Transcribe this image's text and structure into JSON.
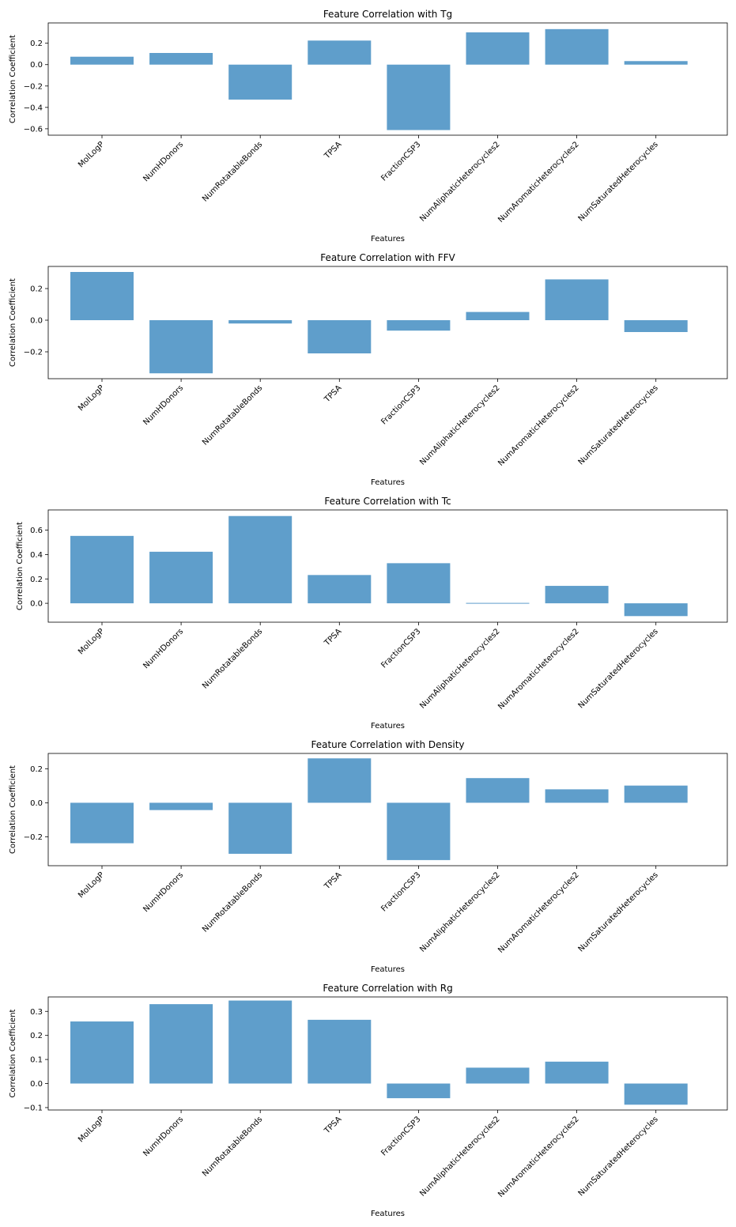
{
  "chart_data": [
    {
      "type": "bar",
      "title": "Feature Correlation with Tg",
      "xlabel": "Features",
      "ylabel": "Correlation Coefficient",
      "categories": [
        "MolLogP",
        "NumHDonors",
        "NumRotatableBonds",
        "TPSA",
        "FractionCSP3",
        "NumAliphaticHeterocycles2",
        "NumAromaticHeterocycles2",
        "NumSaturatedHeterocycles"
      ],
      "values": [
        0.074,
        0.109,
        -0.327,
        0.225,
        -0.612,
        0.302,
        0.332,
        0.033
      ],
      "ylim": [
        -0.66,
        0.39
      ],
      "yticks": [
        -0.6,
        -0.4,
        -0.2,
        0.0,
        0.2
      ],
      "ytick_labels": [
        "−0.6",
        "−0.4",
        "−0.2",
        "0.0",
        "0.2"
      ],
      "bar_color": "#5f9ecb",
      "grid": false
    },
    {
      "type": "bar",
      "title": "Feature Correlation with FFV",
      "xlabel": "Features",
      "ylabel": "Correlation Coefficient",
      "categories": [
        "MolLogP",
        "NumHDonors",
        "NumRotatableBonds",
        "TPSA",
        "FractionCSP3",
        "NumAliphaticHeterocycles2",
        "NumAromaticHeterocycles2",
        "NumSaturatedHeterocycles"
      ],
      "values": [
        0.305,
        -0.336,
        -0.021,
        -0.21,
        -0.066,
        0.052,
        0.258,
        -0.075
      ],
      "ylim": [
        -0.37,
        0.34
      ],
      "yticks": [
        -0.2,
        0.0,
        0.2
      ],
      "ytick_labels": [
        "−0.2",
        "0.0",
        "0.2"
      ],
      "bar_color": "#5f9ecb",
      "grid": false
    },
    {
      "type": "bar",
      "title": "Feature Correlation with Tc",
      "xlabel": "Features",
      "ylabel": "Correlation Coefficient",
      "categories": [
        "MolLogP",
        "NumHDonors",
        "NumRotatableBonds",
        "TPSA",
        "FractionCSP3",
        "NumAliphaticHeterocycles2",
        "NumAromaticHeterocycles2",
        "NumSaturatedHeterocycles"
      ],
      "values": [
        0.553,
        0.423,
        0.716,
        0.232,
        0.329,
        -0.006,
        0.143,
        -0.105
      ],
      "ylim": [
        -0.155,
        0.766
      ],
      "yticks": [
        0.0,
        0.2,
        0.4,
        0.6
      ],
      "ytick_labels": [
        "0.0",
        "0.2",
        "0.4",
        "0.6"
      ],
      "bar_color": "#5f9ecb",
      "grid": false
    },
    {
      "type": "bar",
      "title": "Feature Correlation with Density",
      "xlabel": "Features",
      "ylabel": "Correlation Coefficient",
      "categories": [
        "MolLogP",
        "NumHDonors",
        "NumRotatableBonds",
        "TPSA",
        "FractionCSP3",
        "NumAliphaticHeterocycles2",
        "NumAromaticHeterocycles2",
        "NumSaturatedHeterocycles"
      ],
      "values": [
        -0.238,
        -0.043,
        -0.3,
        0.261,
        -0.337,
        0.145,
        0.079,
        0.101
      ],
      "ylim": [
        -0.37,
        0.29
      ],
      "yticks": [
        -0.2,
        0.0,
        0.2
      ],
      "ytick_labels": [
        "−0.2",
        "0.0",
        "0.2"
      ],
      "bar_color": "#5f9ecb",
      "grid": false
    },
    {
      "type": "bar",
      "title": "Feature Correlation with Rg",
      "xlabel": "Features",
      "ylabel": "Correlation Coefficient",
      "categories": [
        "MolLogP",
        "NumHDonors",
        "NumRotatableBonds",
        "TPSA",
        "FractionCSP3",
        "NumAliphaticHeterocycles2",
        "NumAromaticHeterocycles2",
        "NumSaturatedHeterocycles"
      ],
      "values": [
        0.258,
        0.33,
        0.345,
        0.265,
        -0.061,
        0.066,
        0.091,
        -0.088
      ],
      "ylim": [
        -0.11,
        0.36
      ],
      "yticks": [
        -0.1,
        0.0,
        0.1,
        0.2,
        0.3
      ],
      "ytick_labels": [
        "−0.1",
        "0.0",
        "0.1",
        "0.2",
        "0.3"
      ],
      "bar_color": "#5f9ecb",
      "grid": false
    }
  ]
}
